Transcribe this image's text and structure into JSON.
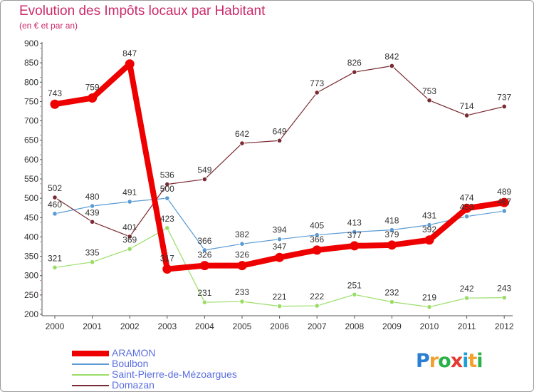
{
  "header": {
    "title": "Evolution des Impôts locaux par Habitant",
    "subtitle": "(en € et par an)"
  },
  "logo": {
    "text": "Proxiti",
    "colors": [
      "#2a7fd4",
      "#f2a02e",
      "#2bb14a",
      "#e53a30",
      "#1e9fd8",
      "#f2a02e",
      "#2bb14a"
    ]
  },
  "chart_data": {
    "type": "line",
    "title": "Evolution des Impôts locaux par Habitant",
    "subtitle": "(en € et par an)",
    "xlabel": "",
    "ylabel": "",
    "x": [
      "2000",
      "2001",
      "2002",
      "2003",
      "2004",
      "2005",
      "2006",
      "2007",
      "2008",
      "2009",
      "2010",
      "2011",
      "2012"
    ],
    "ylim": [
      200,
      900
    ],
    "yticks": [
      200,
      250,
      300,
      350,
      400,
      450,
      500,
      550,
      600,
      650,
      700,
      750,
      800,
      850,
      900
    ],
    "grid": false,
    "legend_position": "bottom-left",
    "series": [
      {
        "name": "ARAMON",
        "color": "#ee0000",
        "emphasis": true,
        "values": [
          743,
          759,
          847,
          317,
          326,
          326,
          347,
          366,
          377,
          379,
          392,
          474,
          489
        ]
      },
      {
        "name": "Boulbon",
        "color": "#5a9bd4",
        "emphasis": false,
        "values": [
          460,
          480,
          491,
          500,
          366,
          382,
          394,
          405,
          413,
          418,
          431,
          453,
          467
        ]
      },
      {
        "name": "Saint-Pierre-de-Mézoargues",
        "color": "#99dd66",
        "emphasis": false,
        "values": [
          321,
          335,
          369,
          423,
          231,
          233,
          221,
          222,
          251,
          232,
          219,
          242,
          243
        ]
      },
      {
        "name": "Domazan",
        "color": "#7a2a32",
        "emphasis": false,
        "values": [
          502,
          439,
          401,
          536,
          549,
          642,
          649,
          773,
          826,
          842,
          753,
          714,
          737
        ]
      }
    ]
  }
}
